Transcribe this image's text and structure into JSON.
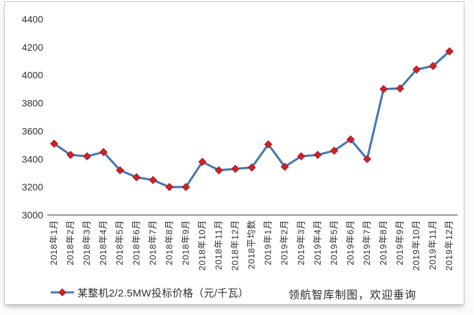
{
  "legend": {
    "label": "某整机2/2.5MW投标价格（元/千瓦）"
  },
  "footer": {
    "credit": "领航智库制图，欢迎垂询"
  },
  "chart_data": {
    "type": "line",
    "title": "",
    "xlabel": "",
    "ylabel": "",
    "categories": [
      "2018年1月",
      "2018年2月",
      "2018年3月",
      "2018年4月",
      "2018年5月",
      "2018年6月",
      "2018年7月",
      "2018年8月",
      "2018年9月",
      "2018年10月",
      "2018年11月",
      "2018年12月",
      "2018平均数",
      "2019年1月",
      "2019年2月",
      "2019年3月",
      "2019年4月",
      "2019年5月",
      "2019年6月",
      "2019年7月",
      "2019年8月",
      "2019年9月",
      "2019年10月",
      "2019年11月",
      "2019年12月"
    ],
    "series": [
      {
        "name": "某整机2/2.5MW投标价格（元/千瓦）",
        "values": [
          3510,
          3430,
          3420,
          3450,
          3320,
          3270,
          3250,
          3200,
          3200,
          3380,
          3320,
          3330,
          3340,
          3505,
          3345,
          3420,
          3430,
          3460,
          3540,
          3400,
          3900,
          3905,
          4040,
          4065,
          4170
        ]
      }
    ],
    "ylim": [
      3000,
      4400
    ],
    "yticks": [
      "3000",
      "3200",
      "3400",
      "3600",
      "3800",
      "4000",
      "4200",
      "4400"
    ],
    "grid": false,
    "legend_position": "bottom-left",
    "marker": "diamond",
    "colors": {
      "line": "#4878b0",
      "marker_fill": "#cf2127",
      "marker_stroke": "#9e151b",
      "axis": "#767676",
      "tick_text": "#303030"
    }
  }
}
